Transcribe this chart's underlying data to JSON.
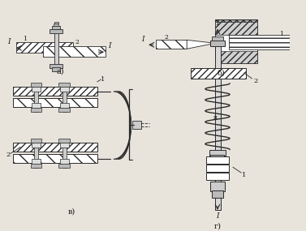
{
  "background_color": "#e8e4dc",
  "labels": {
    "a": "а)",
    "b": "б)",
    "v": "в)",
    "g": "г)"
  },
  "fig_width": 3.77,
  "fig_height": 2.85,
  "dpi": 100
}
